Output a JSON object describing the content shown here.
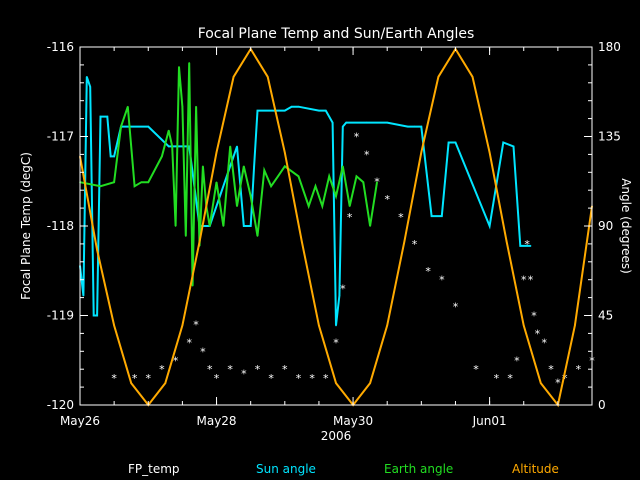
{
  "chart_data": {
    "type": "line",
    "title": "Focal Plane Temp and Sun/Earth Angles",
    "xlabel": "2006",
    "ylabel_left": "Focal Plane Temp (degC)",
    "ylabel_right": "Angle (degrees)",
    "x_ticks": [
      "May26",
      "May28",
      "May30",
      "Jun01"
    ],
    "x_range_days": [
      0,
      7.5
    ],
    "ylim_left": [
      -120,
      -116
    ],
    "yticks_left": [
      "-116",
      "-117",
      "-118",
      "-119",
      "-120"
    ],
    "ylim_right": [
      0,
      180
    ],
    "yticks_right": [
      "180",
      "135",
      "90",
      "45",
      "0"
    ],
    "colors": {
      "FP_temp": "#ffffff",
      "Sun angle": "#00e5ff",
      "Earth angle": "#22dd22",
      "Altitude": "#ffaa00"
    },
    "series": [
      {
        "name": "FP_temp",
        "axis": "left",
        "marker": "star",
        "x": [
          0.5,
          0.8,
          1.0,
          1.2,
          1.4,
          1.6,
          1.7,
          1.8,
          1.9,
          2.0,
          2.2,
          2.4,
          2.6,
          2.8,
          3.0,
          3.2,
          3.4,
          3.6,
          3.75,
          3.85,
          3.95,
          4.05,
          4.2,
          4.35,
          4.5,
          4.7,
          4.9,
          5.1,
          5.3,
          5.5,
          5.8,
          6.1,
          6.3,
          6.4,
          6.5,
          6.55,
          6.6,
          6.65,
          6.7,
          6.8,
          6.9,
          7.0,
          7.1,
          7.3,
          7.5
        ],
        "values": [
          -119.7,
          -119.7,
          -119.7,
          -119.6,
          -119.5,
          -119.3,
          -119.1,
          -119.4,
          -119.6,
          -119.7,
          -119.6,
          -119.65,
          -119.6,
          -119.7,
          -119.6,
          -119.7,
          -119.7,
          -119.7,
          -119.3,
          -118.7,
          -117.9,
          -117.0,
          -117.2,
          -117.5,
          -117.7,
          -117.9,
          -118.2,
          -118.5,
          -118.6,
          -118.9,
          -119.6,
          -119.7,
          -119.7,
          -119.5,
          -118.6,
          -118.2,
          -118.6,
          -119.0,
          -119.2,
          -119.3,
          -119.6,
          -119.75,
          -119.7,
          -119.6,
          -119.5
        ]
      },
      {
        "name": "Sun angle",
        "axis": "right",
        "x": [
          0.0,
          0.05,
          0.1,
          0.15,
          0.2,
          0.25,
          0.3,
          0.4,
          0.45,
          0.5,
          0.6,
          1.0,
          1.3,
          1.5,
          1.6,
          1.75,
          1.9,
          2.0,
          2.3,
          2.4,
          2.5,
          2.55,
          2.6,
          2.8,
          3.0,
          3.1,
          3.2,
          3.5,
          3.6,
          3.7,
          3.75,
          3.8,
          3.85,
          3.9,
          4.2,
          4.5,
          4.8,
          4.9,
          5.0,
          5.15,
          5.3,
          5.4,
          5.5,
          6.0,
          6.2,
          6.35,
          6.45,
          6.6
        ],
        "values": [
          70,
          55,
          165,
          160,
          45,
          45,
          145,
          145,
          125,
          125,
          140,
          140,
          130,
          130,
          130,
          90,
          90,
          100,
          130,
          90,
          90,
          120,
          148,
          148,
          148,
          150,
          150,
          148,
          148,
          142,
          40,
          55,
          140,
          142,
          142,
          142,
          140,
          140,
          140,
          95,
          95,
          132,
          132,
          90,
          132,
          130,
          80,
          80
        ]
      },
      {
        "name": "Earth angle",
        "axis": "right",
        "x": [
          0.0,
          0.3,
          0.5,
          0.6,
          0.7,
          0.8,
          0.9,
          1.0,
          1.2,
          1.3,
          1.35,
          1.4,
          1.45,
          1.5,
          1.55,
          1.6,
          1.65,
          1.7,
          1.75,
          1.8,
          1.85,
          1.9,
          2.0,
          2.1,
          2.2,
          2.3,
          2.4,
          2.5,
          2.6,
          2.7,
          2.8,
          2.9,
          3.0,
          3.2,
          3.35,
          3.45,
          3.55,
          3.65,
          3.75,
          3.85,
          3.95,
          4.05,
          4.15,
          4.25,
          4.35
        ],
        "values": [
          112,
          110,
          112,
          140,
          150,
          110,
          112,
          112,
          125,
          138,
          130,
          90,
          170,
          150,
          85,
          172,
          60,
          150,
          80,
          120,
          100,
          90,
          112,
          90,
          130,
          100,
          120,
          105,
          85,
          118,
          110,
          115,
          120,
          115,
          100,
          110,
          100,
          115,
          105,
          120,
          100,
          115,
          112,
          90,
          112
        ]
      },
      {
        "name": "Altitude",
        "axis": "right",
        "x": [
          0.0,
          0.25,
          0.5,
          0.75,
          1.0,
          1.25,
          1.5,
          1.75,
          2.0,
          2.25,
          2.5,
          2.75,
          3.0,
          3.25,
          3.5,
          3.75,
          4.0,
          4.25,
          4.5,
          4.75,
          5.0,
          5.25,
          5.5,
          5.75,
          6.0,
          6.25,
          6.5,
          6.75,
          7.0,
          7.25,
          7.5
        ],
        "values": [
          125,
          78,
          40,
          11,
          0,
          11,
          40,
          82,
          127,
          165,
          179,
          165,
          127,
          82,
          40,
          11,
          0,
          11,
          40,
          82,
          127,
          165,
          179,
          165,
          127,
          82,
          40,
          11,
          0,
          40,
          100
        ]
      }
    ]
  }
}
